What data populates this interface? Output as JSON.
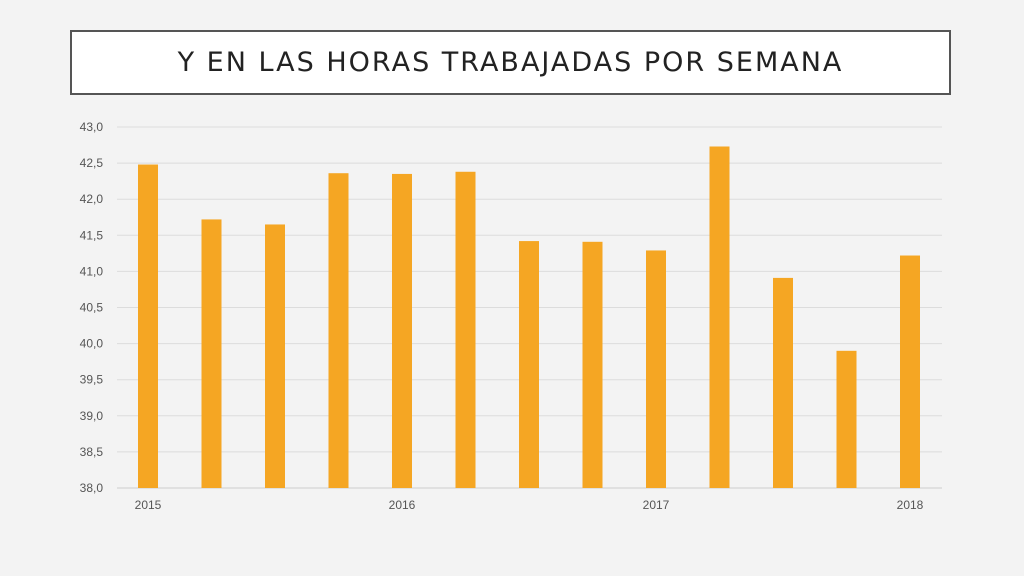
{
  "title": "Y EN LAS HORAS TRABAJADAS POR SEMANA",
  "colors": {
    "bar": "#f5a623",
    "grid": "#dcdcdc",
    "axis": "#cccccc",
    "background": "#f3f3f3",
    "title_border": "#555555"
  },
  "chart_data": {
    "type": "bar",
    "title": "Y EN LAS HORAS TRABAJADAS POR SEMANA",
    "xlabel": "",
    "ylabel": "",
    "ylim": [
      38.0,
      43.0
    ],
    "yticks": [
      "38,0",
      "38,5",
      "39,0",
      "39,5",
      "40,0",
      "40,5",
      "41,0",
      "41,5",
      "42,0",
      "42,5",
      "43,0"
    ],
    "grid": true,
    "x_tick_labels": [
      {
        "label": "2015",
        "index": 0
      },
      {
        "label": "2016",
        "index": 4
      },
      {
        "label": "2017",
        "index": 8
      },
      {
        "label": "2018",
        "index": 12
      }
    ],
    "values": [
      42.48,
      41.72,
      41.65,
      42.36,
      42.35,
      42.38,
      41.42,
      41.41,
      41.29,
      42.73,
      40.91,
      39.9,
      41.22
    ]
  }
}
